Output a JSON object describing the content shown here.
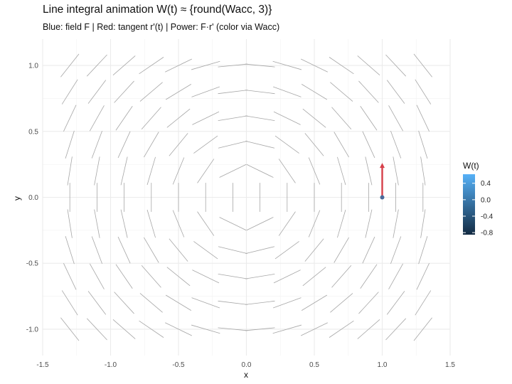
{
  "chart_data": {
    "type": "vector-field",
    "title": "Line integral animation   W(t) ≈ {round(Wacc, 3)}",
    "subtitle": "Blue: field F   |   Red: tangent r'(t)   |   Power: F·r' (color via Wacc)",
    "xlabel": "x",
    "ylabel": "y",
    "xlim": [
      -1.5,
      1.5
    ],
    "ylim": [
      -1.2,
      1.2
    ],
    "x_ticks": [
      -1.5,
      -1.0,
      -0.5,
      0.0,
      0.5,
      1.0,
      1.5
    ],
    "x_tick_labels": [
      "-1.5",
      "-1.0",
      "-0.5",
      "0.0",
      "0.5",
      "1.0",
      "1.5"
    ],
    "y_ticks": [
      -1.0,
      -0.5,
      0.0,
      0.5,
      1.0
    ],
    "y_tick_labels": [
      "-1.0",
      "-0.5",
      "0.0",
      "0.5",
      "1.0"
    ],
    "grid": true,
    "field": {
      "x_range": [
        -1.3,
        1.3
      ],
      "y_range": [
        -1.0,
        1.0
      ],
      "nx": 14,
      "ny": 11,
      "segment_color": "#a6a6a6"
    },
    "point": {
      "x": 1.0,
      "y": 0.0,
      "color": "#4a6a9a"
    },
    "tangent": {
      "x": 1.0,
      "y": 0.0,
      "dx": 0.0,
      "dy": 0.25,
      "color": "#d6404a"
    },
    "legend": {
      "title": "W(t)",
      "position": "right",
      "range": [
        -0.85,
        0.62
      ],
      "tick_values": [
        0.4,
        0.0,
        -0.4,
        -0.8
      ],
      "tick_labels": [
        "0.4",
        "0.0",
        "-0.4",
        "-0.8"
      ],
      "color_low": "#132b43",
      "color_high": "#56b1f7"
    }
  }
}
